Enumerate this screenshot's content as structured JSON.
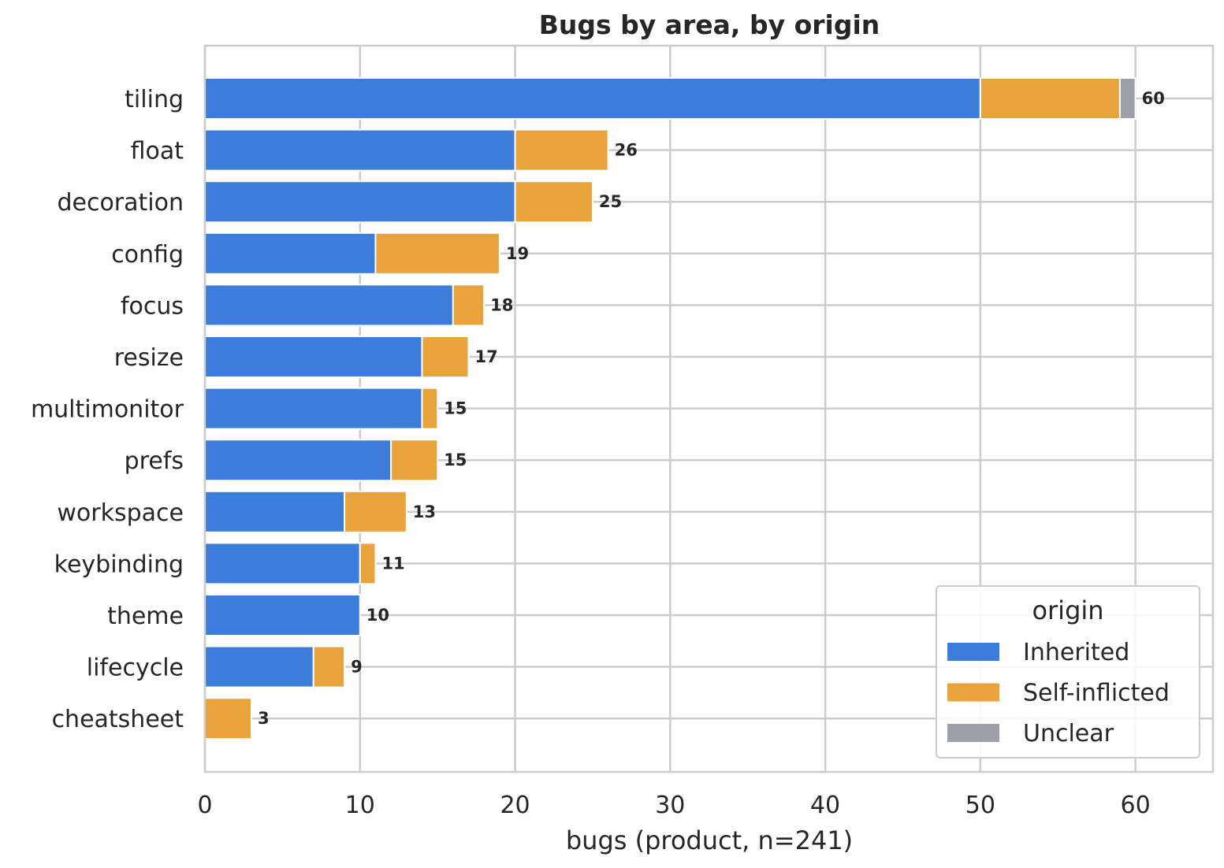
{
  "chart_data": {
    "type": "bar",
    "orientation": "horizontal",
    "stacked": true,
    "title": "Bugs by area, by origin",
    "xlabel": "bugs (product, n=241)",
    "ylabel": "",
    "xlim": [
      0,
      65
    ],
    "xticks": [
      0,
      10,
      20,
      30,
      40,
      50,
      60
    ],
    "grid": true,
    "legend_position": "bottom-right",
    "legend_title": "origin",
    "categories": [
      "tiling",
      "float",
      "decoration",
      "config",
      "focus",
      "resize",
      "multimonitor",
      "prefs",
      "workspace",
      "keybinding",
      "theme",
      "lifecycle",
      "cheatsheet"
    ],
    "series": [
      {
        "name": "Inherited",
        "color": "#3b7dd8",
        "values": [
          50,
          20,
          20,
          11,
          16,
          14,
          14,
          12,
          9,
          10,
          10,
          7,
          0
        ]
      },
      {
        "name": "Self-inflicted",
        "color": "#e8a33d",
        "values": [
          9,
          6,
          5,
          8,
          2,
          3,
          1,
          3,
          4,
          1,
          0,
          2,
          3
        ]
      },
      {
        "name": "Unclear",
        "color": "#9ca0a6",
        "values": [
          1,
          0,
          0,
          0,
          0,
          0,
          0,
          0,
          0,
          0,
          0,
          0,
          0
        ]
      }
    ],
    "totals": [
      "60",
      "26",
      "25",
      "19",
      "18",
      "17",
      "15",
      "15",
      "13",
      "11",
      "10",
      "9",
      "3"
    ]
  }
}
